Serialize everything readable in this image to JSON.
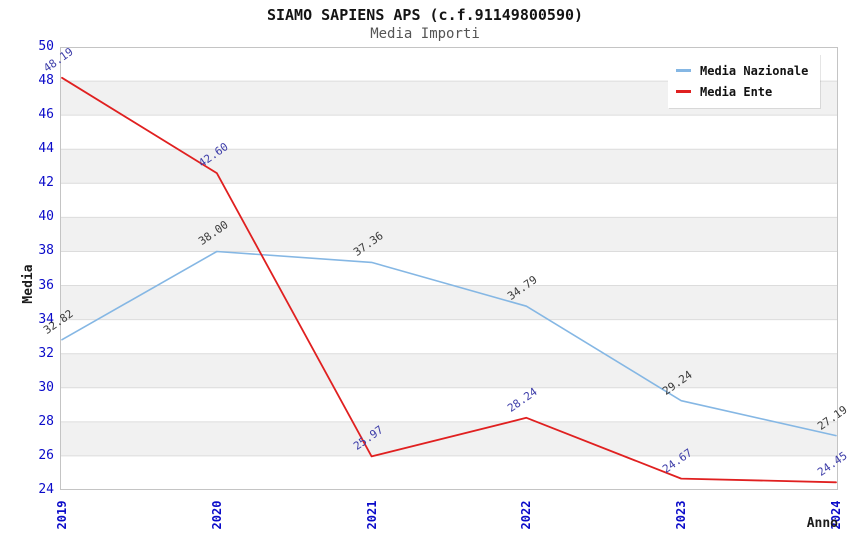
{
  "title": "SIAMO SAPIENS APS (c.f.91149800590)",
  "subtitle": "Media Importi",
  "chart_data": {
    "type": "line",
    "x": [
      "2019",
      "2020",
      "2021",
      "2022",
      "2023",
      "2024"
    ],
    "series": [
      {
        "name": "Media Nazionale",
        "color": "#85B7E4",
        "label_color": "#3A3A3A",
        "values": [
          32.82,
          38.0,
          37.36,
          34.79,
          29.24,
          27.19
        ]
      },
      {
        "name": "Media Ente",
        "color": "#E02020",
        "label_color": "#3C3CA8",
        "values": [
          48.19,
          42.6,
          25.97,
          28.24,
          24.67,
          24.45
        ]
      }
    ],
    "xlabel": "Anno",
    "ylabel": "Media",
    "ylim": [
      24,
      50
    ],
    "y_tick_step": 2,
    "x_tick_rotation": -90,
    "grid": "horizontal",
    "legend_position": "top-right",
    "colors": {
      "tick_label": "#0B0BC9",
      "band_gray": "#F1F1F1",
      "band_white": "#FFFFFF",
      "gridline": "#DCDCDC",
      "plot_border": "#C4C4C4"
    }
  }
}
